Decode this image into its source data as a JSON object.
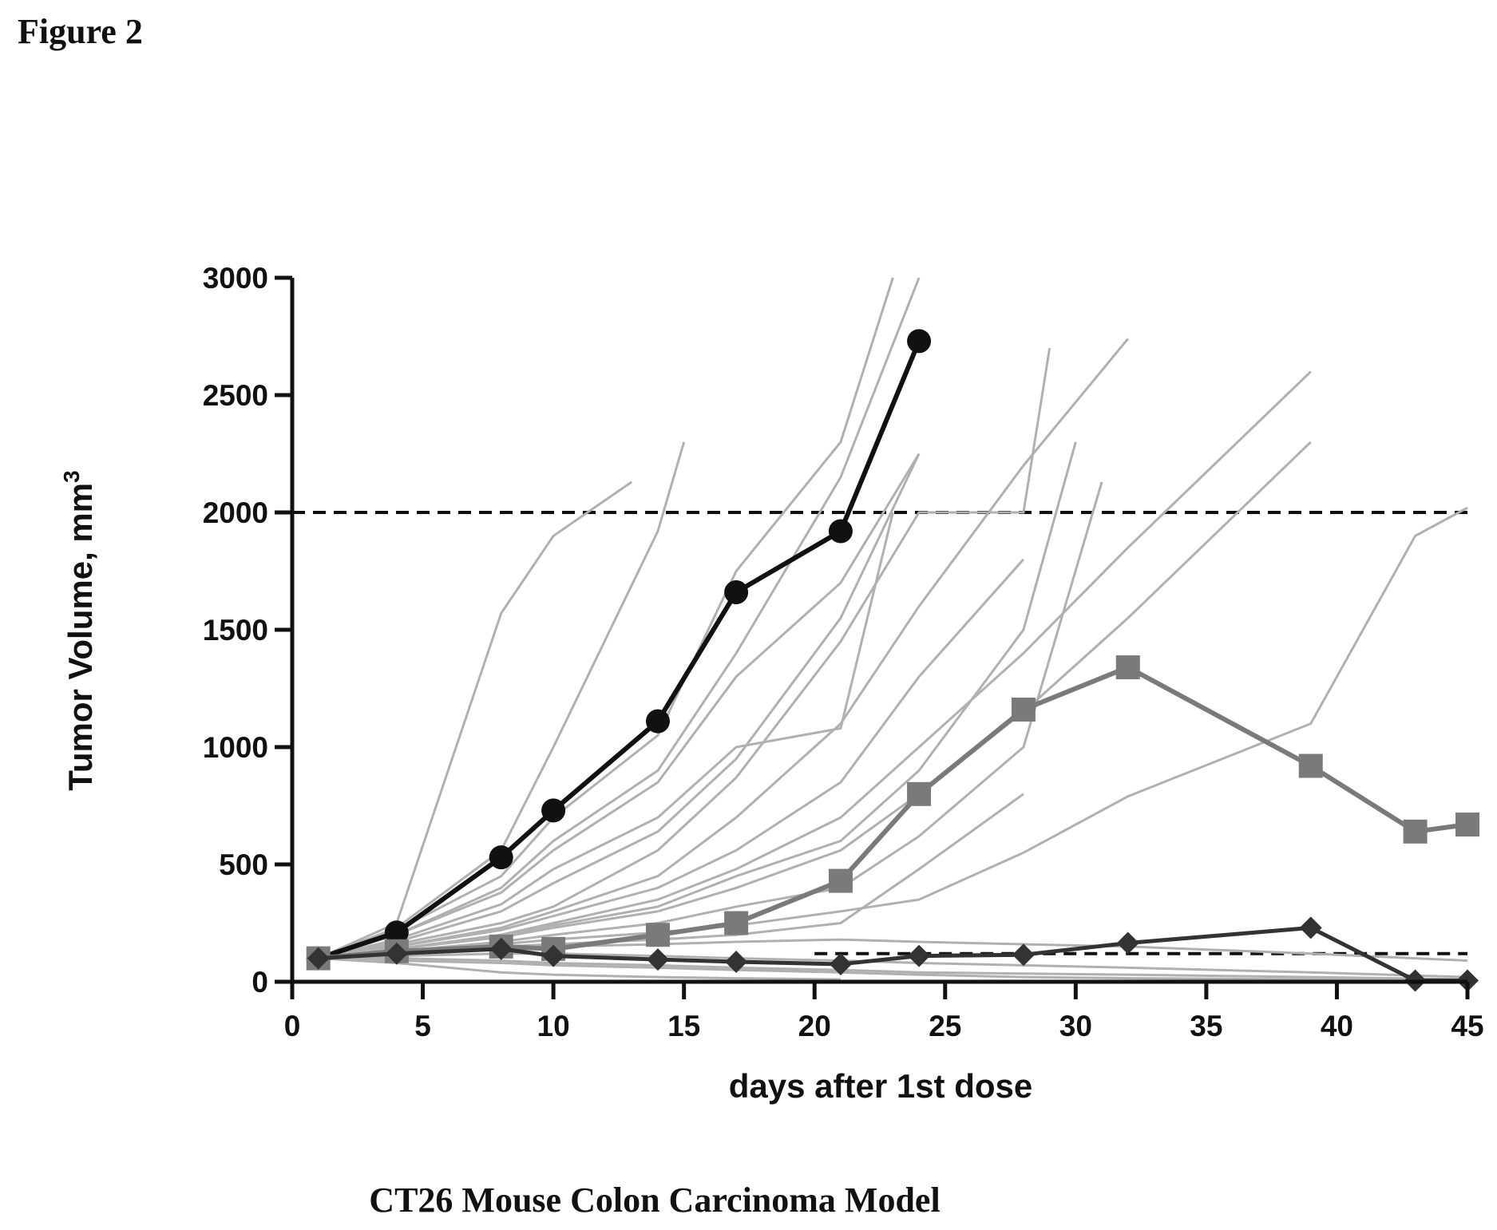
{
  "figure_label": "Figure 2",
  "caption": "CT26 Mouse Colon Carcinoma Model",
  "chart_data": {
    "type": "line",
    "title": "",
    "xlabel": "days after 1st dose",
    "ylabel": "Tumor Volume, mm",
    "ylabel_superscript": "3",
    "xlim": [
      0,
      45
    ],
    "ylim": [
      0,
      3000
    ],
    "xticks": [
      0,
      5,
      10,
      15,
      20,
      25,
      30,
      35,
      40,
      45
    ],
    "yticks": [
      0,
      500,
      1000,
      1500,
      2000,
      2500,
      3000
    ],
    "grid": false,
    "reference_lines": [
      {
        "y": 2000,
        "style": "dashed",
        "color": "#111111"
      },
      {
        "y": 120,
        "style": "dashed",
        "color": "#111111",
        "x_from": 20
      }
    ],
    "series": [
      {
        "marker": "circle",
        "color": "#111111",
        "width": 6,
        "x": [
          1,
          4,
          8,
          10,
          14,
          17,
          21,
          24
        ],
        "y": [
          100,
          210,
          530,
          730,
          1110,
          1660,
          1920,
          2730
        ]
      },
      {
        "marker": "square",
        "color": "#7a7a7a",
        "width": 6,
        "x": [
          1,
          4,
          8,
          10,
          14,
          17,
          21,
          24,
          28,
          32,
          39,
          43,
          45
        ],
        "y": [
          100,
          130,
          150,
          140,
          200,
          250,
          430,
          800,
          1160,
          1340,
          920,
          640,
          670
        ]
      },
      {
        "marker": "diamond",
        "color": "#333333",
        "width": 5,
        "x": [
          1,
          4,
          8,
          10,
          14,
          17,
          21,
          24,
          28,
          32,
          39,
          43,
          45
        ],
        "y": [
          100,
          120,
          140,
          110,
          95,
          85,
          75,
          110,
          115,
          165,
          230,
          5,
          5
        ]
      }
    ],
    "individual_curves": [
      {
        "x": [
          1,
          4,
          8,
          10,
          13
        ],
        "y": [
          100,
          250,
          1570,
          1900,
          2130
        ]
      },
      {
        "x": [
          1,
          4,
          8,
          10,
          14,
          15
        ],
        "y": [
          100,
          230,
          560,
          1000,
          1920,
          2300
        ]
      },
      {
        "x": [
          1,
          4,
          8,
          10,
          14,
          17,
          21,
          23
        ],
        "y": [
          100,
          220,
          450,
          700,
          1050,
          1750,
          2300,
          3000
        ]
      },
      {
        "x": [
          1,
          4,
          8,
          10,
          14,
          17,
          21,
          24
        ],
        "y": [
          100,
          200,
          400,
          600,
          900,
          1400,
          2150,
          3000
        ]
      },
      {
        "x": [
          1,
          4,
          8,
          10,
          14,
          17,
          21,
          24
        ],
        "y": [
          100,
          200,
          380,
          560,
          850,
          1300,
          1700,
          2250
        ]
      },
      {
        "x": [
          1,
          4,
          8,
          10,
          14,
          17,
          20,
          21,
          23
        ],
        "y": [
          100,
          180,
          330,
          480,
          700,
          1000,
          1060,
          1080,
          2000
        ]
      },
      {
        "x": [
          1,
          4,
          8,
          10,
          14,
          17,
          21,
          24
        ],
        "y": [
          100,
          170,
          300,
          420,
          640,
          950,
          1550,
          2250
        ]
      },
      {
        "x": [
          1,
          4,
          8,
          10,
          14,
          17,
          21,
          24,
          28,
          29
        ],
        "y": [
          100,
          160,
          250,
          320,
          560,
          870,
          1450,
          2000,
          2000,
          2700
        ]
      },
      {
        "x": [
          1,
          4,
          8,
          10,
          14,
          17,
          21,
          24,
          28,
          32
        ],
        "y": [
          100,
          150,
          230,
          300,
          450,
          700,
          1100,
          1600,
          2200,
          2740
        ]
      },
      {
        "x": [
          1,
          4,
          8,
          10,
          14,
          17,
          21,
          24,
          28,
          32,
          39
        ],
        "y": [
          100,
          140,
          200,
          250,
          350,
          480,
          700,
          1000,
          1400,
          1850,
          2600
        ]
      },
      {
        "x": [
          1,
          4,
          8,
          10,
          14,
          17,
          21,
          24,
          28,
          32,
          39
        ],
        "y": [
          100,
          140,
          190,
          230,
          300,
          400,
          560,
          800,
          1150,
          1550,
          2300
        ]
      },
      {
        "x": [
          1,
          4,
          8,
          10,
          14,
          17,
          21,
          24,
          28,
          31
        ],
        "y": [
          100,
          130,
          170,
          200,
          250,
          320,
          400,
          620,
          1000,
          2130
        ]
      },
      {
        "x": [
          1,
          4,
          8,
          10,
          14,
          17,
          21,
          24,
          28,
          32,
          39,
          43,
          45
        ],
        "y": [
          100,
          130,
          160,
          180,
          210,
          240,
          300,
          350,
          550,
          790,
          1100,
          1900,
          2020
        ]
      },
      {
        "x": [
          1,
          4,
          8,
          10,
          14,
          17,
          21,
          24,
          28,
          30
        ],
        "y": [
          100,
          140,
          200,
          240,
          320,
          450,
          600,
          900,
          1500,
          2300
        ]
      },
      {
        "x": [
          1,
          4,
          8,
          10,
          14,
          17,
          21,
          24,
          28
        ],
        "y": [
          100,
          150,
          220,
          280,
          400,
          560,
          850,
          1300,
          1800
        ]
      },
      {
        "x": [
          1,
          4,
          8,
          10,
          14,
          17,
          21,
          24,
          28
        ],
        "y": [
          100,
          120,
          150,
          160,
          180,
          200,
          250,
          480,
          800
        ]
      },
      {
        "x": [
          1,
          4,
          8,
          10,
          14,
          17,
          21,
          24,
          28,
          32,
          39,
          45
        ],
        "y": [
          100,
          110,
          120,
          120,
          110,
          100,
          90,
          80,
          70,
          60,
          40,
          20
        ]
      },
      {
        "x": [
          1,
          4,
          8,
          10,
          14,
          17,
          21,
          24,
          28,
          32,
          39,
          45
        ],
        "y": [
          100,
          100,
          90,
          80,
          70,
          60,
          50,
          40,
          35,
          30,
          20,
          10
        ]
      },
      {
        "x": [
          1,
          4,
          8,
          10,
          14,
          17,
          21,
          24,
          28,
          32,
          39,
          45
        ],
        "y": [
          100,
          90,
          80,
          70,
          60,
          50,
          40,
          30,
          20,
          15,
          10,
          5
        ]
      },
      {
        "x": [
          1,
          4,
          8,
          10,
          14,
          17,
          21
        ],
        "y": [
          100,
          80,
          40,
          30,
          20,
          15,
          10
        ]
      },
      {
        "x": [
          1,
          4,
          8,
          10,
          14,
          17,
          21,
          24,
          28,
          32,
          39,
          45
        ],
        "y": [
          100,
          120,
          140,
          150,
          160,
          170,
          180,
          170,
          160,
          150,
          120,
          90
        ]
      }
    ]
  }
}
